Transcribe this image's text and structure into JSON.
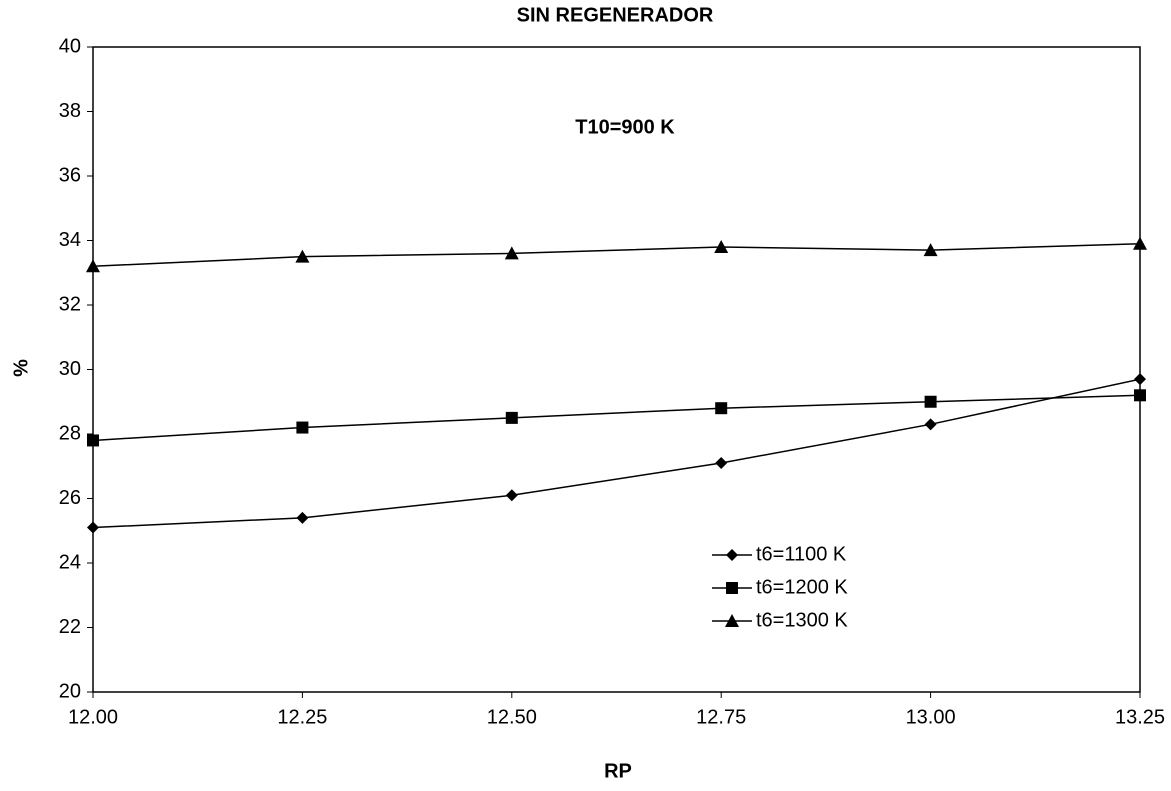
{
  "chart_data": {
    "type": "line",
    "title": "SIN REGENERADOR",
    "annotation": "T10=900 K",
    "xlabel": "RP",
    "ylabel": "%",
    "x": [
      12.0,
      12.25,
      12.5,
      12.75,
      13.0,
      13.25
    ],
    "series": [
      {
        "name": "t6=1100 K",
        "color": "#000000",
        "marker": "diamond",
        "values": [
          25.1,
          25.4,
          26.1,
          27.1,
          28.3,
          29.7
        ]
      },
      {
        "name": "t6=1200 K",
        "color": "#000000",
        "marker": "square",
        "values": [
          27.8,
          28.2,
          28.5,
          28.8,
          29.0,
          29.2
        ]
      },
      {
        "name": "t6=1300 K",
        "color": "#000000",
        "marker": "triangle",
        "values": [
          33.2,
          33.5,
          33.6,
          33.8,
          33.7,
          33.9
        ]
      }
    ],
    "xlim": [
      12.0,
      13.25
    ],
    "xticks": [
      {
        "value": 12.0,
        "label": "12.00"
      },
      {
        "value": 12.25,
        "label": "12.25"
      },
      {
        "value": 12.5,
        "label": "12.50"
      },
      {
        "value": 12.75,
        "label": "12.75"
      },
      {
        "value": 13.0,
        "label": "13.00"
      },
      {
        "value": 13.25,
        "label": "13.25"
      }
    ],
    "ylim": [
      20,
      40
    ],
    "yticks": [
      20,
      22,
      24,
      26,
      28,
      30,
      32,
      34,
      36,
      38,
      40
    ],
    "grid": false,
    "legend_position": "lower right"
  }
}
